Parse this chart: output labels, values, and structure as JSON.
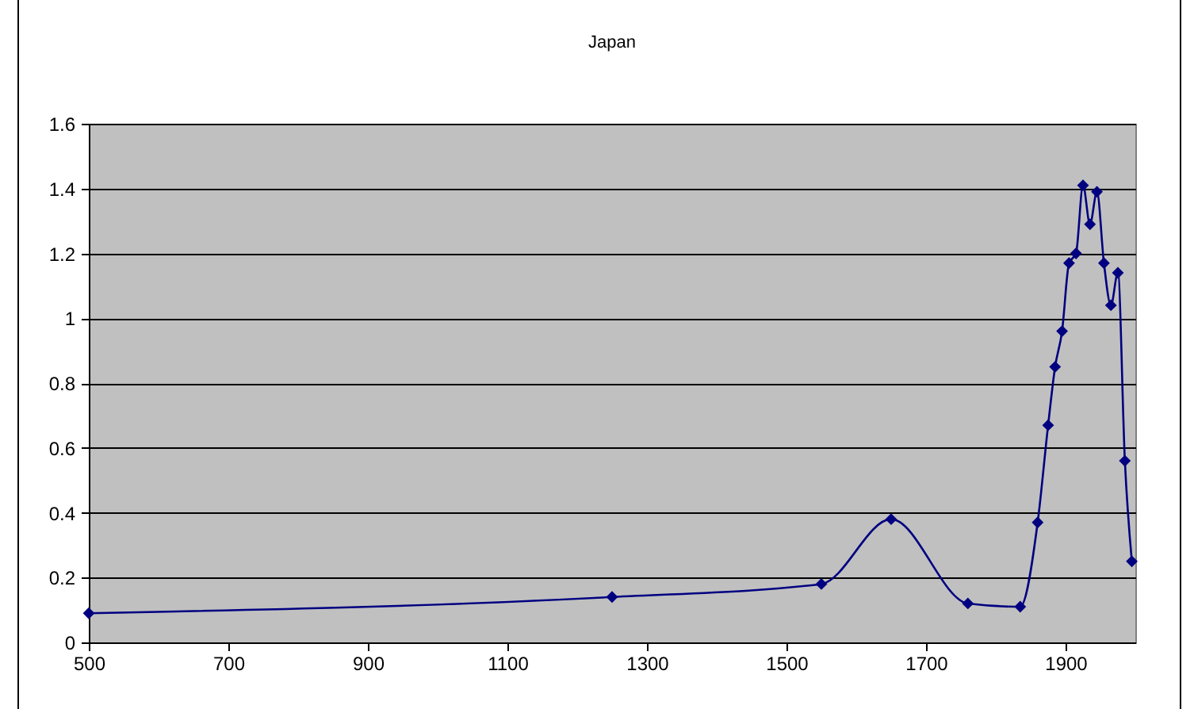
{
  "chart_data": {
    "type": "line",
    "title": "Japan",
    "x": [
      500,
      1250,
      1550,
      1650,
      1760,
      1835,
      1860,
      1875,
      1885,
      1895,
      1905,
      1915,
      1925,
      1935,
      1945,
      1955,
      1965,
      1975,
      1985,
      1995
    ],
    "values": [
      0.09,
      0.14,
      0.18,
      0.38,
      0.12,
      0.11,
      0.37,
      0.67,
      0.85,
      0.96,
      1.17,
      1.2,
      1.41,
      1.29,
      1.39,
      1.17,
      1.04,
      1.14,
      0.56,
      0.25
    ],
    "color": "#000080",
    "marker": "diamond",
    "xlim": [
      500,
      2000
    ],
    "xticks": [
      500,
      700,
      900,
      1100,
      1300,
      1500,
      1700,
      1900
    ],
    "ylim": [
      0,
      1.6
    ],
    "yticks": [
      0,
      0.2,
      0.4,
      0.6,
      0.8,
      1,
      1.2,
      1.4,
      1.6
    ],
    "grid": "y"
  }
}
